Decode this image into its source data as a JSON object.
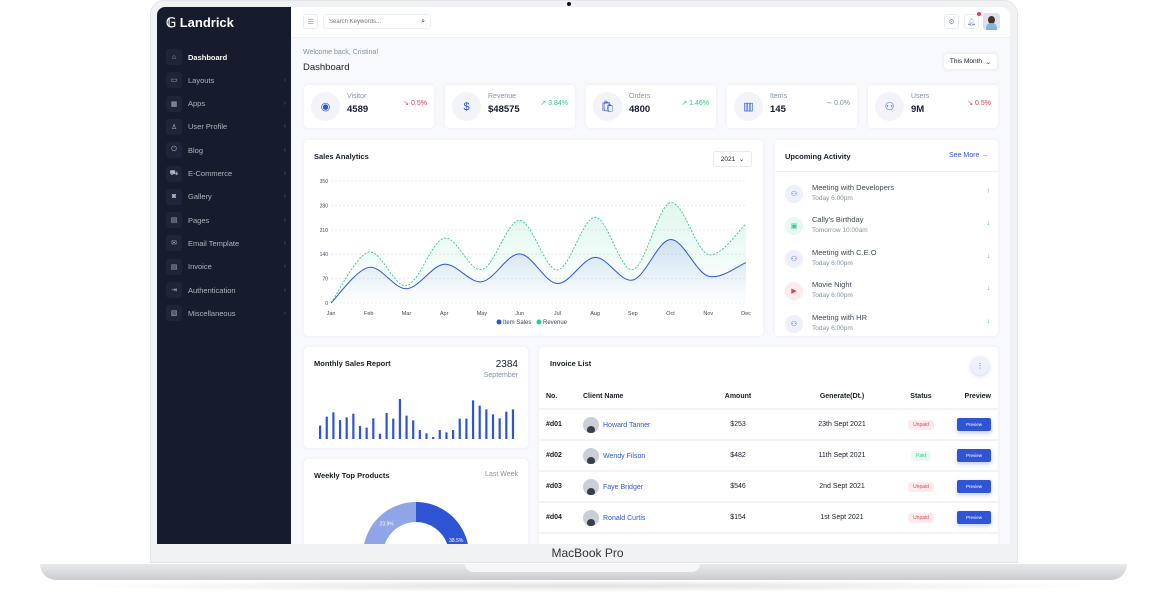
{
  "device_label": "MacBook Pro",
  "brand": "Landrick",
  "search": {
    "placeholder": "Search Keywords..."
  },
  "sidebar": {
    "items": [
      {
        "label": "Dashboard",
        "icon": "home-icon",
        "active": true
      },
      {
        "label": "Layouts",
        "icon": "layout-icon"
      },
      {
        "label": "Apps",
        "icon": "apps-icon"
      },
      {
        "label": "User Profile",
        "icon": "user-icon"
      },
      {
        "label": "Blog",
        "icon": "blog-icon"
      },
      {
        "label": "E-Commerce",
        "icon": "cart-icon"
      },
      {
        "label": "Gallery",
        "icon": "camera-icon"
      },
      {
        "label": "Pages",
        "icon": "file-icon"
      },
      {
        "label": "Email Template",
        "icon": "email-icon"
      },
      {
        "label": "Invoice",
        "icon": "invoice-icon"
      },
      {
        "label": "Authentication",
        "icon": "login-icon"
      },
      {
        "label": "Miscellaneous",
        "icon": "misc-icon"
      }
    ]
  },
  "header": {
    "welcome": "Welcome back, Cristina!",
    "title": "Dashboard",
    "period": "This Month"
  },
  "stats": [
    {
      "label": "Visitor",
      "value": "4589",
      "change": "0.5%",
      "trend": "down",
      "icon": "user-circle-icon"
    },
    {
      "label": "Revenue",
      "value": "$48575",
      "change": "3.84%",
      "trend": "up",
      "icon": "dollar-icon"
    },
    {
      "label": "Orders",
      "value": "4800",
      "change": "1.46%",
      "trend": "up",
      "icon": "shopping-bag-icon"
    },
    {
      "label": "Items",
      "value": "145",
      "change": "0.0%",
      "trend": "flat",
      "icon": "store-icon"
    },
    {
      "label": "Users",
      "value": "9M",
      "change": "0.5%",
      "trend": "down",
      "icon": "users-icon"
    }
  ],
  "colors": {
    "primary": "#2f55d4",
    "success": "#2eca8b",
    "danger": "#e43f52",
    "warning": "#f17425",
    "sidebar": "#161c2d"
  },
  "sales_analytics": {
    "title": "Sales Analytics",
    "year": "2021"
  },
  "chart_data": [
    {
      "type": "area",
      "categories": [
        "Jan",
        "Feb",
        "Mar",
        "Apr",
        "May",
        "Jun",
        "Jul",
        "Aug",
        "Sep",
        "Oct",
        "Nov",
        "Dec"
      ],
      "yticks": [
        0,
        70,
        140,
        210,
        280,
        350
      ],
      "ylim": [
        0,
        350
      ],
      "grid": true,
      "legend": "bottom",
      "series": [
        {
          "name": "Item Sales",
          "color": "#2f55d4",
          "values": [
            0,
            102,
            41,
            111,
            61,
            141,
            56,
            131,
            66,
            182,
            77,
            116
          ]
        },
        {
          "name": "Revenue",
          "color": "#2eca8b",
          "dashed": true,
          "values": [
            0,
            146,
            50,
            186,
            96,
            237,
            95,
            246,
            96,
            288,
            139,
            227
          ]
        }
      ]
    },
    {
      "type": "bar",
      "title": "Monthly Sales Report",
      "total": "2384",
      "subtitle": "September",
      "values": [
        40,
        67,
        80,
        57,
        65,
        76,
        39,
        34,
        62,
        16,
        78,
        61,
        120,
        70,
        56,
        27,
        17,
        6,
        27,
        20,
        27,
        61,
        61,
        116,
        100,
        89,
        74,
        62,
        82,
        89
      ]
    },
    {
      "type": "pie",
      "title": "Weekly Top Products",
      "subtitle": "Last Week",
      "slices": [
        {
          "label": "38.5%",
          "value": 38.5,
          "color": "#2f55d4"
        },
        {
          "label": "23.9%",
          "value": 23.9,
          "color": "#8fa5e8"
        }
      ]
    }
  ],
  "activity": {
    "title": "Upcoming Activity",
    "see_more": "See More →",
    "items": [
      {
        "title": "Meeting with Developers",
        "time": "Today 6:00pm",
        "icon": "users-icon",
        "tone": "primary",
        "arrow": "↑"
      },
      {
        "title": "Cally's Birthday",
        "time": "Tomorrow 10:00am",
        "icon": "gift-icon",
        "tone": "success",
        "arrow": "↓"
      },
      {
        "title": "Meeting with C.E.O",
        "time": "Today 6:00pm",
        "icon": "users-icon",
        "tone": "primary",
        "arrow": "↓"
      },
      {
        "title": "Movie Night",
        "time": "Today 6:00pm",
        "icon": "video-icon",
        "tone": "danger",
        "arrow": "↓"
      },
      {
        "title": "Meeting with HR",
        "time": "Today 6:00pm",
        "icon": "users-icon",
        "tone": "primary",
        "arrow": "↓"
      }
    ]
  },
  "invoices": {
    "title": "Invoice List",
    "columns": [
      "No.",
      "Client Name",
      "Amount",
      "Generate(Dt.)",
      "Status",
      "Preview"
    ],
    "rows": [
      {
        "no": "#d01",
        "client": "Howard Tanner",
        "amount": "$253",
        "date": "23th Sept 2021",
        "status": "Unpaid",
        "action": "Preview"
      },
      {
        "no": "#d02",
        "client": "Wendy Filson",
        "amount": "$482",
        "date": "11th Sept 2021",
        "status": "Paid",
        "action": "Preview"
      },
      {
        "no": "#d03",
        "client": "Faye Bridger",
        "amount": "$546",
        "date": "2nd Sept 2021",
        "status": "Unpaid",
        "action": "Preview"
      },
      {
        "no": "#d04",
        "client": "Ronald Curtis",
        "amount": "$154",
        "date": "1st Sept 2021",
        "status": "Unpaid",
        "action": "Preview"
      }
    ]
  }
}
